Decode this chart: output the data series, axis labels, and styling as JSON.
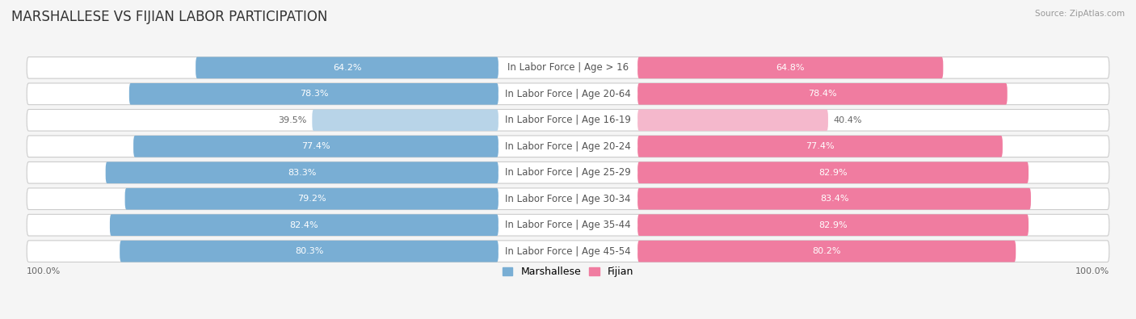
{
  "title": "MARSHALLESE VS FIJIAN LABOR PARTICIPATION",
  "source": "Source: ZipAtlas.com",
  "categories": [
    "In Labor Force | Age > 16",
    "In Labor Force | Age 20-64",
    "In Labor Force | Age 16-19",
    "In Labor Force | Age 20-24",
    "In Labor Force | Age 25-29",
    "In Labor Force | Age 30-34",
    "In Labor Force | Age 35-44",
    "In Labor Force | Age 45-54"
  ],
  "marshallese_values": [
    64.2,
    78.3,
    39.5,
    77.4,
    83.3,
    79.2,
    82.4,
    80.3
  ],
  "fijian_values": [
    64.8,
    78.4,
    40.4,
    77.4,
    82.9,
    83.4,
    82.9,
    80.2
  ],
  "marshallese_color": "#79aed4",
  "marshallese_color_light": "#b8d4e8",
  "fijian_color": "#f07ca0",
  "fijian_color_light": "#f5b8cc",
  "row_bg_color": "#e8e8e8",
  "row_fill_color": "#f5f5f5",
  "max_value": 100.0,
  "title_fontsize": 12,
  "label_fontsize": 8.5,
  "value_fontsize": 8,
  "legend_fontsize": 9,
  "background_color": "#f5f5f5"
}
